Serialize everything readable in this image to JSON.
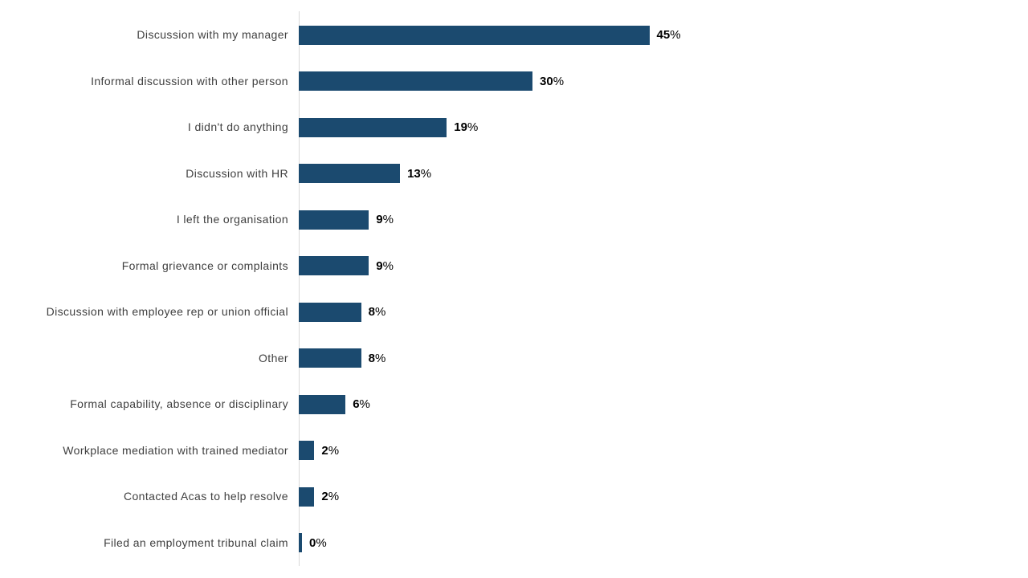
{
  "chart_data": {
    "type": "bar",
    "orientation": "horizontal",
    "title": "",
    "xlabel": "",
    "ylabel": "",
    "xlim": [
      0,
      90
    ],
    "grid": false,
    "legend": false,
    "bar_color": "#1b4a6f",
    "axis_line_color": "#d9d9d9",
    "category_label_color": "#404040",
    "value_label_color": "#000000",
    "categories": [
      "Discussion with my manager",
      "Informal discussion with other person",
      "I didn't do anything",
      "Discussion with HR",
      "I left the organisation",
      "Formal grievance or complaints",
      "Discussion with employee rep or union official",
      "Other",
      "Formal capability, absence or disciplinary",
      "Workplace mediation with trained mediator",
      "Contacted Acas to help resolve",
      "Filed an employment tribunal claim"
    ],
    "values": [
      45,
      30,
      19,
      13,
      9,
      9,
      8,
      8,
      6,
      2,
      2,
      0
    ],
    "value_labels": [
      "45%",
      "30%",
      "19%",
      "13%",
      "9%",
      "9%",
      "8%",
      "8%",
      "6%",
      "2%",
      "2%",
      "0%"
    ],
    "percent_suffix": "%"
  }
}
